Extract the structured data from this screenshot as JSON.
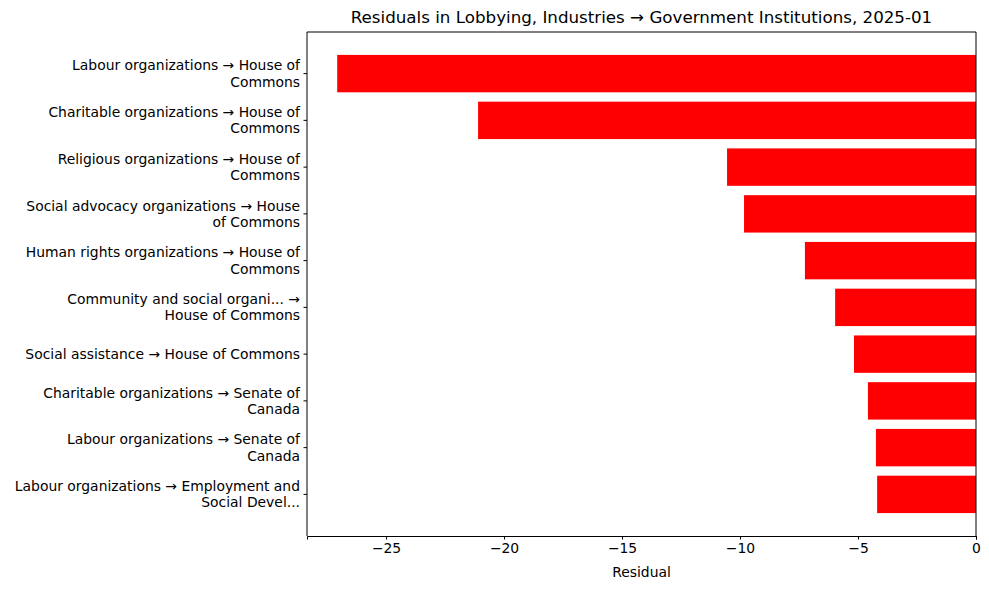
{
  "chart_data": {
    "type": "bar",
    "orientation": "horizontal",
    "title": "Residuals in Lobbying, Industries → Government Institutions, 2025-01",
    "xlabel": "Residual",
    "categories": [
      "Labour organizations → House of\nCommons",
      "Charitable organizations → House of\nCommons",
      "Religious organizations → House of\nCommons",
      "Social advocacy organizations → House\nof Commons",
      "Human rights organizations → House of\nCommons",
      "Community and social organi... →\nHouse of Commons",
      "Social assistance → House of Commons",
      "Charitable organizations → Senate of\nCanada",
      "Labour organizations → Senate of\nCanada",
      "Labour organizations → Employment and\nSocial Devel..."
    ],
    "values": [
      -27.07,
      -21.1,
      -10.55,
      -9.83,
      -7.25,
      -5.97,
      -5.17,
      -4.58,
      -4.24,
      -4.19
    ],
    "color": "#ff0000",
    "xlim": [
      -28.35,
      0
    ],
    "xticks": [
      {
        "value": -25,
        "label": "−25"
      },
      {
        "value": -20,
        "label": "−20"
      },
      {
        "value": -15,
        "label": "−15"
      },
      {
        "value": -10,
        "label": "−10"
      },
      {
        "value": -5,
        "label": "−5"
      },
      {
        "value": 0,
        "label": "0"
      }
    ],
    "grid": false
  }
}
